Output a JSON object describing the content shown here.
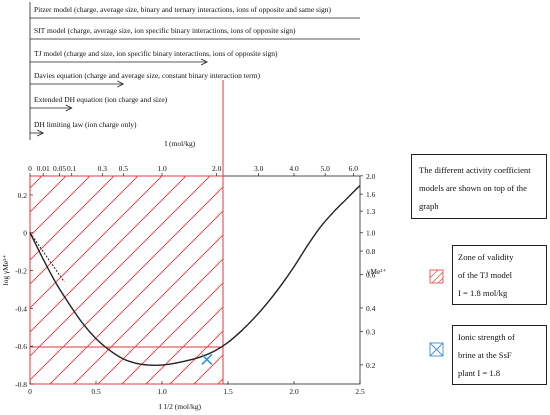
{
  "models": [
    {
      "label": "Pitzer model (charge, average size, binary and ternary interactions, ions of opposite and same sign)",
      "max_I": null
    },
    {
      "label": "SIT model (charge, average size, ion specific binary interactions, ions of opposite sign)",
      "max_I": null
    },
    {
      "label": "TJ model (charge and size, ion specific binary interactions, ions of opposite sign)",
      "max_I": 1.8
    },
    {
      "label": "Davies equation (charge and average size, constant binary interaction term)",
      "max_I": 0.5
    },
    {
      "label": "Extended DH equation (ion charge and size)",
      "max_I": 0.1
    },
    {
      "label": "DH limiting law (ion charge only)",
      "max_I": 0.01
    }
  ],
  "chart_data": {
    "type": "line",
    "x": [
      0,
      0.1,
      0.2,
      0.3,
      0.4,
      0.5,
      0.6,
      0.7,
      0.8,
      0.9,
      1.0,
      1.1,
      1.2,
      1.3,
      1.4,
      1.5,
      1.6,
      1.7,
      1.8,
      1.9,
      2.0,
      2.1,
      2.2,
      2.3,
      2.4,
      2.5
    ],
    "y": [
      0,
      -0.14,
      -0.27,
      -0.38,
      -0.48,
      -0.56,
      -0.62,
      -0.665,
      -0.69,
      -0.7,
      -0.7,
      -0.69,
      -0.675,
      -0.655,
      -0.625,
      -0.58,
      -0.52,
      -0.45,
      -0.37,
      -0.28,
      -0.18,
      -0.07,
      0.03,
      0.11,
      0.18,
      0.25
    ],
    "limiting_law": {
      "x": [
        0,
        0.26
      ],
      "y": [
        0,
        -0.26
      ]
    },
    "xlabel": "I 1/2 (mol/kg)",
    "ylabel": "log γMe²⁺",
    "top_axis_label": "I (mol/kg)",
    "right_axis_label": "γMe²⁺",
    "xlim": [
      0,
      2.5
    ],
    "ylim": [
      -0.8,
      0.3
    ],
    "x_ticks": [
      "0",
      "0.5",
      "1.0",
      "1.5",
      "2.0",
      "2.5"
    ],
    "y_ticks": [
      "0.2",
      "0",
      "-0.2",
      "-0.4",
      "-0.6",
      "-0.8"
    ],
    "top_ticks": [
      "0",
      "0.01",
      "0.05",
      "0.1",
      "0.3",
      "0.5",
      "1.0",
      "2.0",
      "3.0",
      "4.0",
      "5.0",
      "6.0"
    ],
    "right_ticks": [
      "2.0",
      "1.6",
      "1.3",
      "1.0",
      "0.8",
      "0.6",
      "0.4",
      "0.3",
      "0.2"
    ],
    "tj_validity_sqrtI": 1.45,
    "ssf_brine": {
      "sqrtI": 1.34,
      "logy": -0.67
    },
    "ssf_level_logy": -0.62,
    "colors": {
      "validity": "#e23a3a",
      "marker": "#3a8fd0",
      "curve": "#222222"
    }
  },
  "annotations": {
    "info": "The different activity coefficient models are shown on top of the graph",
    "validity_line1": "Zone of validity",
    "validity_line2": "of the TJ model",
    "validity_line3": "I = 1.8 mol/kg",
    "brine_line1": "Ionic strength of",
    "brine_line2": "brine at the SsF",
    "brine_line3": "plant I = 1.8"
  },
  "legend_icons": {
    "validity": "hatched-square-icon",
    "brine": "crossed-square-icon"
  }
}
